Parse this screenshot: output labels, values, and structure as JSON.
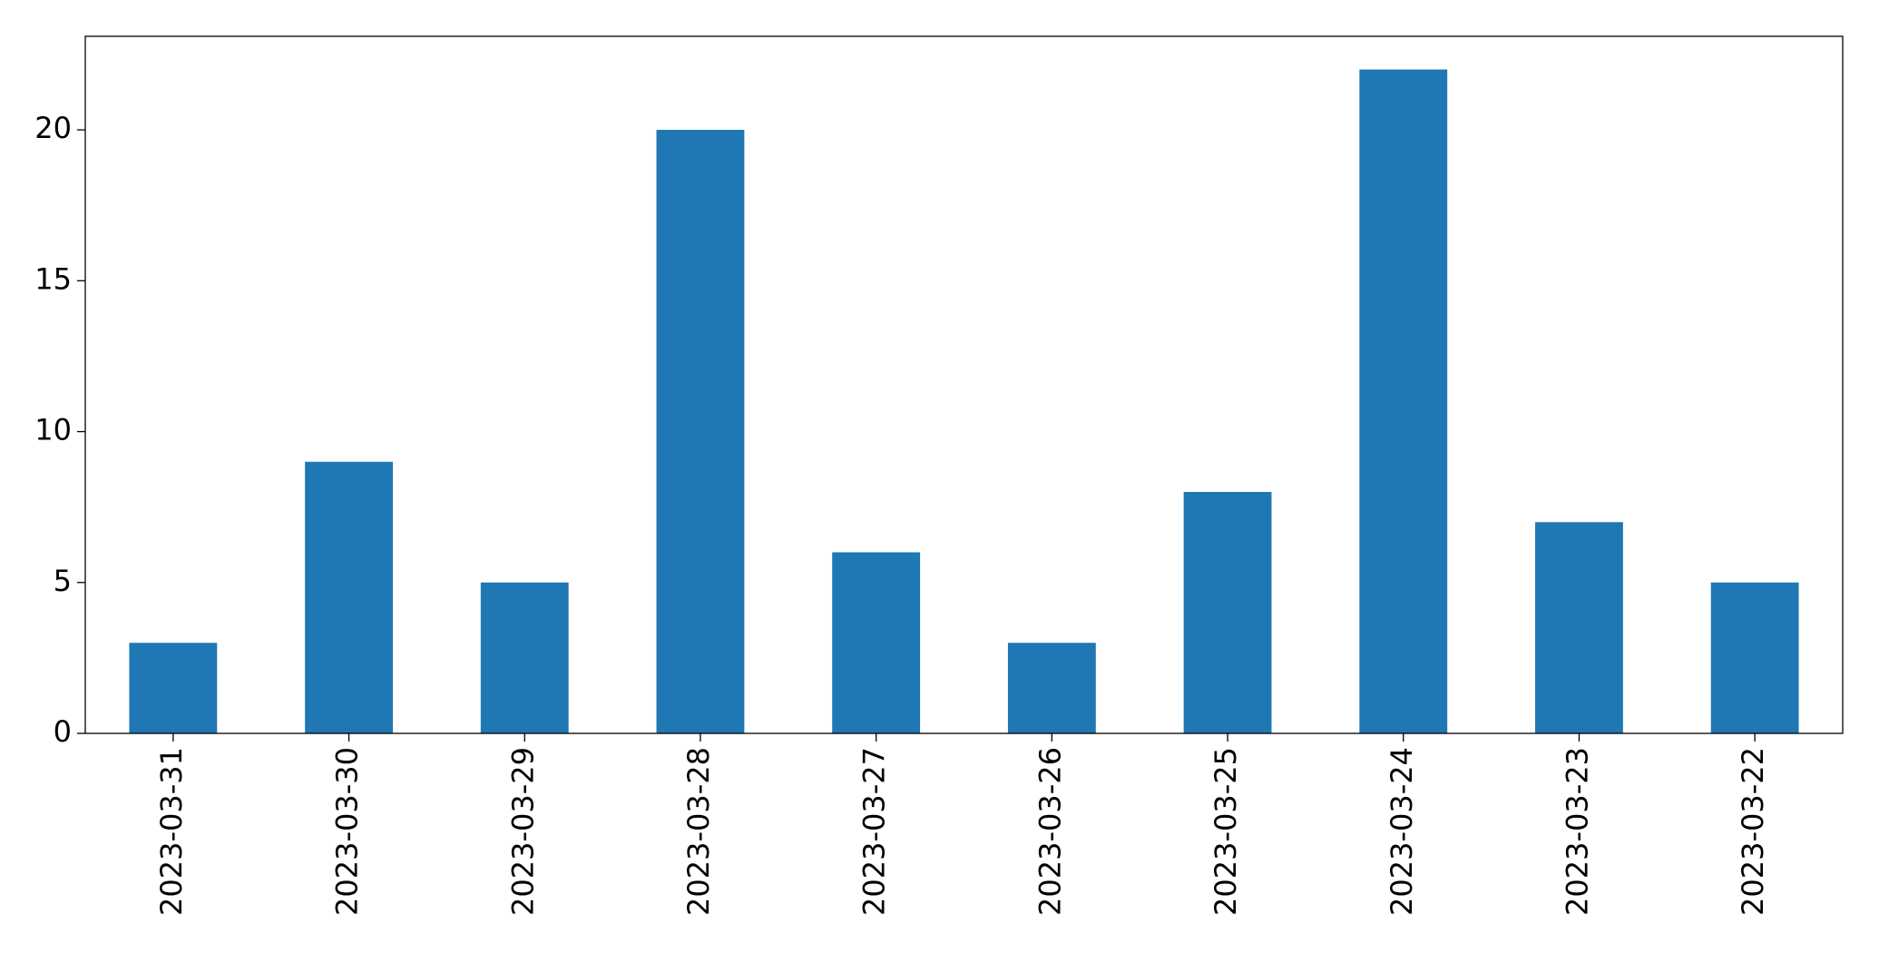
{
  "chart_data": {
    "type": "bar",
    "categories": [
      "2023-03-31",
      "2023-03-30",
      "2023-03-29",
      "2023-03-28",
      "2023-03-27",
      "2023-03-26",
      "2023-03-25",
      "2023-03-24",
      "2023-03-23",
      "2023-03-22"
    ],
    "values": [
      3,
      9,
      5,
      20,
      6,
      3,
      8,
      22,
      7,
      5
    ],
    "color": "#1f77b4",
    "ylim": [
      0,
      23.1
    ],
    "yticks": [
      0,
      5,
      10,
      15,
      20
    ],
    "grid": false
  }
}
